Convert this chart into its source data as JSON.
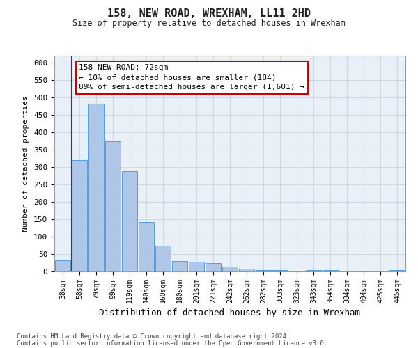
{
  "title": "158, NEW ROAD, WREXHAM, LL11 2HD",
  "subtitle": "Size of property relative to detached houses in Wrexham",
  "xlabel": "Distribution of detached houses by size in Wrexham",
  "ylabel": "Number of detached properties",
  "categories": [
    "38sqm",
    "58sqm",
    "79sqm",
    "99sqm",
    "119sqm",
    "140sqm",
    "160sqm",
    "180sqm",
    "201sqm",
    "221sqm",
    "242sqm",
    "262sqm",
    "282sqm",
    "303sqm",
    "323sqm",
    "343sqm",
    "364sqm",
    "384sqm",
    "404sqm",
    "425sqm",
    "445sqm"
  ],
  "values": [
    32,
    320,
    483,
    375,
    288,
    143,
    75,
    30,
    28,
    25,
    15,
    8,
    5,
    5,
    3,
    5,
    5,
    1,
    0,
    0,
    5
  ],
  "bar_color": "#aec6e8",
  "bar_edge_color": "#5b9bd5",
  "grid_color": "#d0d8e8",
  "background_color": "#eaf0f8",
  "vline_color": "#cc0000",
  "annotation_text": "158 NEW ROAD: 72sqm\n← 10% of detached houses are smaller (184)\n89% of semi-detached houses are larger (1,601) →",
  "annotation_box_color": "#ffffff",
  "annotation_box_edge": "#cc0000",
  "ylim": [
    0,
    620
  ],
  "yticks": [
    0,
    50,
    100,
    150,
    200,
    250,
    300,
    350,
    400,
    450,
    500,
    550,
    600
  ],
  "footer_line1": "Contains HM Land Registry data © Crown copyright and database right 2024.",
  "footer_line2": "Contains public sector information licensed under the Open Government Licence v3.0."
}
